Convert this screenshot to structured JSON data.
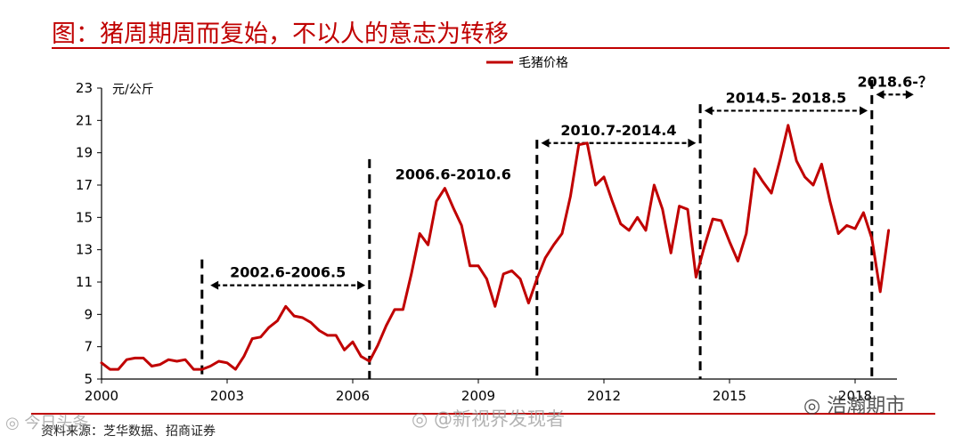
{
  "page": {
    "title": "图：猪周期周而复始，不以人的意志为转移",
    "source": "资料来源：芝华数据、招商证券",
    "watermarks": {
      "left": "◎ 今日头条",
      "center": "◎ @新视界发现者",
      "right": "◎ 浩瀚期市"
    }
  },
  "chart_data": {
    "type": "line",
    "ylabel": "元/公斤",
    "ylim": [
      5,
      23
    ],
    "yticks": [
      5,
      7,
      9,
      11,
      13,
      15,
      17,
      19,
      21,
      23
    ],
    "xlim": [
      2000,
      2019.0
    ],
    "xticks": [
      2000,
      2003,
      2006,
      2009,
      2012,
      2015,
      2018
    ],
    "xtick_labels": [
      "2000",
      "2003",
      "2006",
      "2009",
      "2012",
      "2015",
      "2018"
    ],
    "grid": false,
    "legend": {
      "position": "top-center",
      "entries": [
        "毛猪价格"
      ]
    },
    "colors": {
      "series": "#c00000",
      "axis": "#000000",
      "markers": "#000000"
    },
    "series": [
      {
        "name": "毛猪价格",
        "x": [
          2000.0,
          2000.2,
          2000.4,
          2000.6,
          2000.8,
          2001.0,
          2001.2,
          2001.4,
          2001.6,
          2001.8,
          2002.0,
          2002.2,
          2002.4,
          2002.6,
          2002.8,
          2003.0,
          2003.2,
          2003.4,
          2003.6,
          2003.8,
          2004.0,
          2004.2,
          2004.4,
          2004.6,
          2004.8,
          2005.0,
          2005.2,
          2005.4,
          2005.6,
          2005.8,
          2006.0,
          2006.2,
          2006.4,
          2006.6,
          2006.8,
          2007.0,
          2007.2,
          2007.4,
          2007.6,
          2007.8,
          2008.0,
          2008.2,
          2008.4,
          2008.6,
          2008.8,
          2009.0,
          2009.2,
          2009.4,
          2009.6,
          2009.8,
          2010.0,
          2010.2,
          2010.4,
          2010.6,
          2010.8,
          2011.0,
          2011.2,
          2011.4,
          2011.6,
          2011.8,
          2012.0,
          2012.2,
          2012.4,
          2012.6,
          2012.8,
          2013.0,
          2013.2,
          2013.4,
          2013.6,
          2013.8,
          2014.0,
          2014.2,
          2014.4,
          2014.6,
          2014.8,
          2015.0,
          2015.2,
          2015.4,
          2015.6,
          2015.8,
          2016.0,
          2016.2,
          2016.4,
          2016.6,
          2016.8,
          2017.0,
          2017.2,
          2017.4,
          2017.6,
          2017.8,
          2018.0,
          2018.2,
          2018.4,
          2018.6,
          2018.8
        ],
        "values": [
          6.0,
          5.6,
          5.6,
          6.2,
          6.3,
          6.3,
          5.8,
          5.9,
          6.2,
          6.1,
          6.2,
          5.6,
          5.6,
          5.8,
          6.1,
          6.0,
          5.6,
          6.4,
          7.5,
          7.6,
          8.2,
          8.6,
          9.5,
          8.9,
          8.8,
          8.5,
          8.0,
          7.7,
          7.7,
          6.8,
          7.3,
          6.4,
          6.1,
          7.1,
          8.3,
          9.3,
          9.3,
          11.5,
          14.0,
          13.3,
          16.0,
          16.8,
          15.6,
          14.5,
          12.0,
          12.0,
          11.2,
          9.5,
          11.5,
          11.7,
          11.2,
          9.7,
          11.2,
          12.5,
          13.3,
          14.0,
          16.3,
          19.5,
          19.6,
          17.0,
          17.5,
          16.0,
          14.6,
          14.2,
          15.0,
          14.2,
          17.0,
          15.5,
          12.8,
          15.7,
          15.5,
          11.3,
          13.2,
          14.9,
          14.8,
          13.5,
          12.3,
          14.0,
          18.0,
          17.2,
          16.5,
          18.5,
          20.7,
          18.5,
          17.5,
          17.0,
          18.3,
          16.0,
          14.0,
          14.5,
          14.3,
          15.3,
          13.7,
          10.4,
          14.2
        ]
      }
    ],
    "cycle_markers": [
      2002.4,
      2006.4,
      2010.4,
      2014.3,
      2018.4
    ],
    "periods": [
      {
        "label": "2002.6-2006.5",
        "start": 2002.6,
        "end": 2006.3,
        "y": 10.8
      },
      {
        "label": "2006.6-2010.6",
        "start": null,
        "end": null,
        "y": 17.7
      },
      {
        "label": "2010.7-2014.4",
        "start": 2010.5,
        "end": 2014.2,
        "y": 19.6
      },
      {
        "label": "2014.5- 2018.5",
        "start": 2014.4,
        "end": 2018.3,
        "y": 21.6
      },
      {
        "label": "2018.6-？",
        "start": 2018.5,
        "end": 2019.4,
        "y": 22.6
      }
    ]
  }
}
